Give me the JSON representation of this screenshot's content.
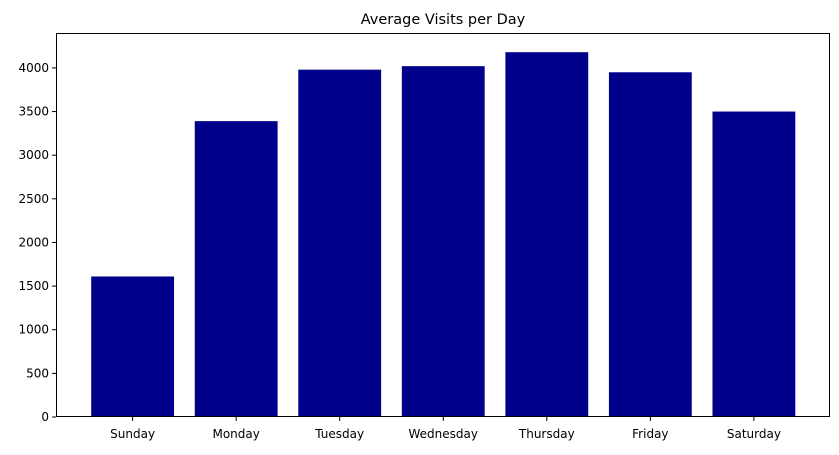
{
  "chart_data": {
    "type": "bar",
    "title": "Average Visits per Day",
    "xlabel": "",
    "ylabel": "",
    "categories": [
      "Sunday",
      "Monday",
      "Tuesday",
      "Wednesday",
      "Thursday",
      "Friday",
      "Saturday"
    ],
    "values": [
      1610,
      3390,
      3980,
      4020,
      4180,
      3950,
      3500
    ],
    "ylim": [
      0,
      4400
    ],
    "yticks": [
      0,
      500,
      1000,
      1500,
      2000,
      2500,
      3000,
      3500,
      4000
    ],
    "grid": false,
    "bar_color": "#00008b"
  }
}
